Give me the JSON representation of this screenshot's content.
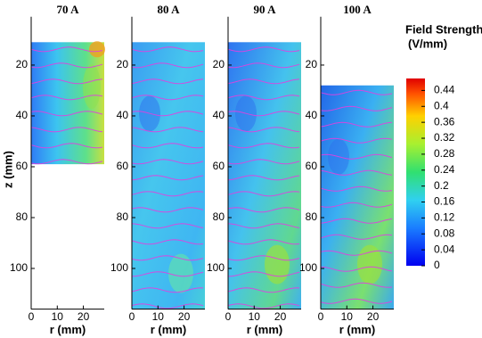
{
  "chart_data": [
    {
      "type": "contour",
      "title": "70 A",
      "xlabel": "r (mm)",
      "ylabel": "z (mm)",
      "xlim": [
        0,
        28
      ],
      "xticks": [
        0,
        10,
        20
      ],
      "ylim": [
        1,
        116
      ],
      "yticks": [
        20,
        40,
        60,
        80,
        100
      ],
      "field_z_extent": [
        11,
        59
      ],
      "color": "#e040e0"
    },
    {
      "type": "contour",
      "title": "80 A",
      "xlabel": "r (mm)",
      "xlim": [
        0,
        28
      ],
      "xticks": [
        0,
        10,
        20
      ],
      "ylim": [
        1,
        116
      ],
      "yticks": [
        20,
        40,
        60,
        80,
        100
      ],
      "field_z_extent": [
        11,
        116
      ],
      "color": "#e040e0"
    },
    {
      "type": "contour",
      "title": "90 A",
      "xlabel": "r (mm)",
      "xlim": [
        0,
        28
      ],
      "xticks": [
        0,
        10,
        20
      ],
      "ylim": [
        1,
        116
      ],
      "yticks": [
        20,
        40,
        60,
        80,
        100
      ],
      "field_z_extent": [
        11,
        116
      ],
      "color": "#e040e0"
    },
    {
      "type": "contour",
      "title": "100 A",
      "xlabel": "r (mm)",
      "xlim": [
        0,
        28
      ],
      "xticks": [
        0,
        10,
        20
      ],
      "ylim": [
        1,
        116
      ],
      "yticks": [
        20,
        40,
        60,
        80,
        100
      ],
      "field_z_extent": [
        28,
        116
      ],
      "color": "#e040e0"
    }
  ],
  "colorbar": {
    "title": [
      "Field Strength",
      "(V/mm)"
    ],
    "lim": [
      0,
      0.47
    ],
    "ticks": [
      0,
      0.04,
      0.08,
      0.12,
      0.16,
      0.2,
      0.24,
      0.28,
      0.32,
      0.36,
      0.4,
      0.44
    ]
  }
}
